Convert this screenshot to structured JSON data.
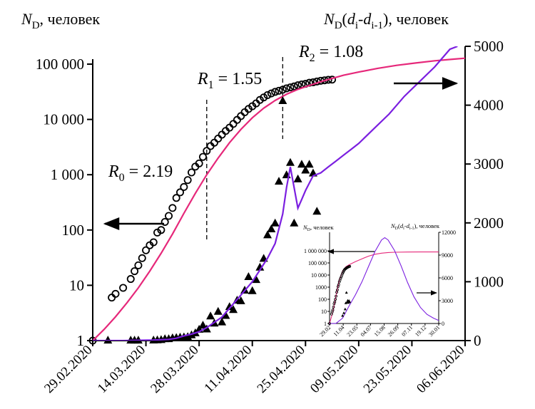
{
  "chart_data": [
    {
      "type": "line",
      "ylabel_left": {
        "main": "N",
        "sub": "D",
        "rest": ", человек"
      },
      "ylabel_right": {
        "main": "N",
        "sub": "D",
        "paren_open": "(",
        "d1": "d",
        "d1sub": "i",
        "dash": "-",
        "d2": "d",
        "d2sub": "i-1",
        "paren_close": ")",
        "rest": ", человек"
      },
      "x_ticks": [
        "29.02.2020",
        "14.03.2020",
        "28.03.2020",
        "11.04.2020",
        "25.04.2020",
        "09.05.2020",
        "23.05.2020",
        "06.06.2020"
      ],
      "x_range_days": [
        0,
        98
      ],
      "y_left_scale": "log",
      "y_left_ticks": [
        "1",
        "10",
        "100",
        "1 000",
        "10 000",
        "100 000"
      ],
      "y_left_range": [
        1,
        100000
      ],
      "y_right_ticks": [
        "0",
        "1000",
        "2000",
        "3000",
        "4000",
        "5000"
      ],
      "y_right_range": [
        0,
        5000
      ],
      "annotations": [
        {
          "main": "R",
          "sub": "0",
          "text": " = 2.19"
        },
        {
          "main": "R",
          "sub": "1",
          "text": " = 1.55"
        },
        {
          "main": "R",
          "sub": "2",
          "text": " = 1.08"
        }
      ],
      "series": [
        {
          "kind": "scatter-circles",
          "axis": "left",
          "color": "#000000",
          "x_dates": [
            "29.02",
            "05.03",
            "06.03",
            "08.03",
            "10.03",
            "11.03",
            "12.03",
            "13.03",
            "14.03",
            "15.03",
            "16.03",
            "17.03",
            "18.03",
            "19.03",
            "20.03",
            "21.03",
            "22.03",
            "23.03",
            "24.03",
            "25.03",
            "26.03",
            "27.03",
            "28.03",
            "29.03",
            "30.03",
            "31.03",
            "01.04",
            "02.04",
            "03.04",
            "04.04",
            "05.04",
            "06.04",
            "07.04",
            "08.04",
            "09.04",
            "10.04",
            "11.04",
            "12.04",
            "13.04",
            "14.04",
            "15.04",
            "16.04",
            "17.04",
            "18.04",
            "19.04",
            "20.04",
            "21.04",
            "22.04",
            "23.04",
            "24.04",
            "25.04",
            "26.04",
            "27.04",
            "28.04",
            "29.04",
            "30.04",
            "01.05",
            "02.05"
          ],
          "y": [
            1,
            6,
            7,
            9,
            13,
            18,
            23,
            31,
            43,
            53,
            60,
            90,
            100,
            140,
            180,
            250,
            380,
            480,
            600,
            800,
            1100,
            1400,
            1600,
            2100,
            2700,
            3300,
            3800,
            4500,
            5300,
            6200,
            7100,
            8300,
            9800,
            11500,
            13500,
            15500,
            17300,
            19500,
            22500,
            25000,
            27500,
            29500,
            31500,
            33000,
            34500,
            36500,
            38000,
            39500,
            41500,
            43000,
            44000,
            46000,
            47000,
            48500,
            50000,
            51000,
            52000,
            52500
          ]
        },
        {
          "kind": "fit-line",
          "axis": "left",
          "color": "#e6287a",
          "x_days": [
            0,
            3,
            6,
            9,
            12,
            15,
            18,
            21,
            24,
            27,
            30,
            33,
            36,
            39,
            42,
            45,
            48,
            51,
            54,
            57,
            60,
            63,
            66,
            70,
            75,
            80,
            85,
            90,
            95,
            98
          ],
          "y": [
            1,
            1.6,
            2.7,
            4.8,
            9,
            18,
            38,
            85,
            200,
            460,
            1000,
            2000,
            3800,
            6600,
            10700,
            16000,
            22000,
            28500,
            35000,
            41000,
            48000,
            55000,
            63000,
            72000,
            84000,
            95000,
            105000,
            115000,
            123000,
            128000
          ]
        },
        {
          "kind": "scatter-triangles",
          "axis": "right",
          "color": "#000000",
          "x_dates": [
            "04.03",
            "10.03",
            "11.03",
            "12.03",
            "16.03",
            "17.03",
            "18.03",
            "19.03",
            "20.03",
            "21.03",
            "22.03",
            "23.03",
            "24.03",
            "25.03",
            "26.03",
            "27.03",
            "28.03",
            "29.03",
            "30.03",
            "31.03",
            "01.04",
            "02.04",
            "03.04",
            "04.04",
            "05.04",
            "06.04",
            "07.04",
            "08.04",
            "09.04",
            "10.04",
            "11.04",
            "12.04",
            "13.04",
            "14.04",
            "15.04",
            "16.04",
            "17.04",
            "18.04",
            "19.04",
            "20.04",
            "21.04",
            "22.04",
            "23.04",
            "24.04",
            "25.04",
            "26.04",
            "27.04",
            "28.04"
          ],
          "y": [
            10,
            10,
            10,
            10,
            12,
            15,
            20,
            35,
            35,
            50,
            55,
            62,
            65,
            70,
            100,
            135,
            195,
            265,
            200,
            420,
            300,
            500,
            320,
            430,
            580,
            530,
            690,
            680,
            860,
            1090,
            850,
            1040,
            1250,
            1400,
            1800,
            1900,
            2000,
            2710,
            4080,
            2820,
            3030,
            2000,
            2750,
            3000,
            2900,
            3000,
            2850,
            2200
          ]
        },
        {
          "kind": "fit-line",
          "axis": "right",
          "color": "#7b1fe0",
          "x_days": [
            0,
            4,
            8,
            12,
            16,
            20,
            22,
            24,
            26,
            28,
            30,
            32,
            34,
            36,
            38,
            40,
            42,
            44,
            46,
            48,
            50,
            51,
            52,
            53,
            54,
            55,
            56,
            58,
            60,
            62,
            64,
            66,
            68,
            70,
            74,
            78,
            82,
            86,
            90,
            94,
            96
          ],
          "y": [
            0,
            0,
            0,
            5,
            10,
            20,
            40,
            80,
            110,
            150,
            220,
            310,
            400,
            550,
            700,
            850,
            1000,
            1200,
            1400,
            1650,
            2150,
            2600,
            2950,
            2600,
            2250,
            2400,
            2550,
            2800,
            2850,
            2950,
            3050,
            3150,
            3250,
            3350,
            3600,
            3850,
            4150,
            4400,
            4650,
            4950,
            5000
          ]
        }
      ]
    },
    {
      "type": "line",
      "role": "inset",
      "ylabel_left": {
        "main": "N",
        "sub": "D",
        "rest": ", человек"
      },
      "ylabel_right": {
        "main": "N",
        "sub": "D",
        "paren_open": "(",
        "d1": "d",
        "d1sub": "i",
        "dash": "-",
        "d2": "d",
        "d2sub": "i-1",
        "paren_close": ")",
        "rest": ", человек"
      },
      "x_ticks": [
        "29.02",
        "11.04",
        "23.05",
        "04.07",
        "15.08",
        "26.09",
        "07.11",
        "19.12",
        "30.01"
      ],
      "y_left_scale": "log",
      "y_left_ticks": [
        "1",
        "10",
        "100",
        "1000",
        "10 000",
        "100 000",
        "1 000 000"
      ],
      "y_left_range": [
        1,
        1000000
      ],
      "y_right_ticks": [
        "0",
        "3000",
        "6000",
        "9000",
        "12000"
      ],
      "y_right_range": [
        0,
        12000
      ],
      "series": [
        {
          "kind": "fit-line",
          "axis": "left",
          "color": "#e6287a",
          "x_index": [
            0,
            10,
            20,
            30,
            40,
            50,
            60,
            80,
            100,
            120,
            140,
            160,
            180,
            200,
            240,
            280,
            320,
            336
          ],
          "y": [
            1,
            9,
            200,
            3800,
            22000,
            48000,
            70000,
            130000,
            220000,
            360000,
            520000,
            640000,
            720000,
            760000,
            790000,
            800000,
            805000,
            805000
          ]
        },
        {
          "kind": "fit-line",
          "axis": "right",
          "color": "#7b1fe0",
          "x_index": [
            0,
            20,
            40,
            60,
            80,
            100,
            120,
            140,
            160,
            170,
            180,
            200,
            220,
            240,
            260,
            280,
            300,
            320,
            336
          ],
          "y": [
            0,
            20,
            700,
            2300,
            3800,
            5500,
            7500,
            9500,
            11000,
            11300,
            11000,
            9600,
            7600,
            5400,
            3500,
            2100,
            1200,
            700,
            400
          ]
        },
        {
          "kind": "scatter-circles",
          "axis": "left",
          "color": "#000000",
          "x_index": [
            0,
            6,
            8,
            10,
            12,
            14,
            16,
            18,
            20,
            22,
            24,
            26,
            28,
            30,
            32,
            34,
            36,
            38,
            40,
            42,
            44,
            46,
            48,
            50,
            52,
            54,
            56,
            58,
            60,
            62
          ],
          "y": [
            1,
            6,
            9,
            13,
            23,
            43,
            60,
            100,
            180,
            380,
            600,
            1100,
            1600,
            2700,
            3800,
            5300,
            7100,
            9800,
            13500,
            17300,
            22500,
            27500,
            31500,
            34500,
            38000,
            41500,
            44000,
            47000,
            50000,
            52000
          ]
        },
        {
          "kind": "scatter-triangles",
          "axis": "right",
          "color": "#000000",
          "x_index": [
            40,
            44,
            48,
            50,
            52,
            54,
            56,
            58,
            60,
            62
          ],
          "y": [
            1040,
            1400,
            1900,
            2710,
            4080,
            2820,
            3030,
            2750,
            3000,
            2850
          ]
        }
      ]
    }
  ]
}
